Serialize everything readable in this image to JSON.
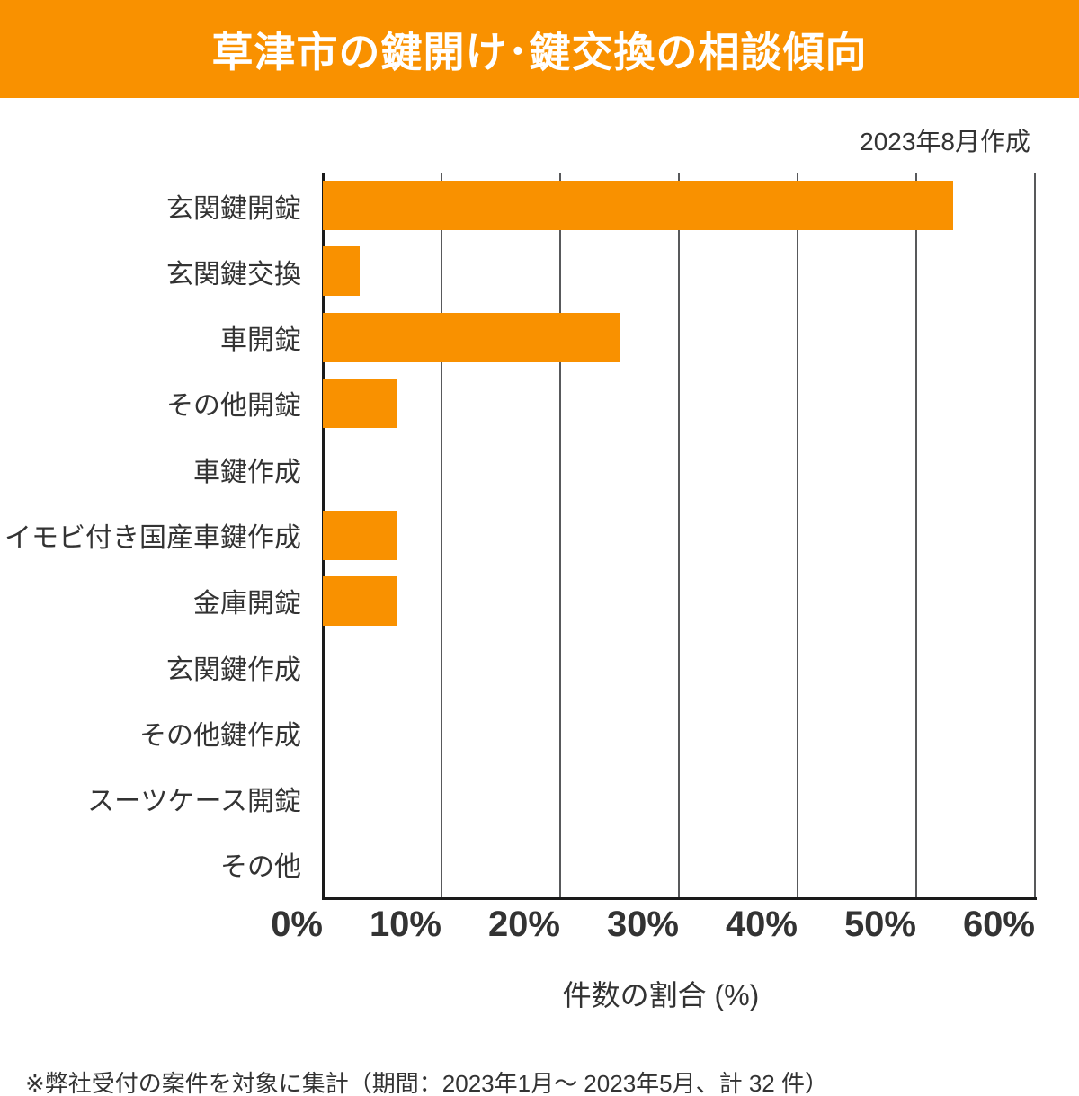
{
  "header": {
    "title": "草津市の鍵開け･鍵交換の相談傾向",
    "bg_color": "#F99100",
    "text_color": "#FFFFFF"
  },
  "meta": {
    "created_label": "2023年8月作成"
  },
  "chart_data": {
    "type": "bar",
    "orientation": "horizontal",
    "title": "草津市の鍵開け･鍵交換の相談傾向",
    "categories": [
      "玄関鍵開錠",
      "玄関鍵交換",
      "車開錠",
      "その他開錠",
      "車鍵作成",
      "イモビ付き国産車鍵作成",
      "金庫開錠",
      "玄関鍵作成",
      "その他鍵作成",
      "スーツケース開錠",
      "その他"
    ],
    "values": [
      53.1,
      3.1,
      25.0,
      6.3,
      0.0,
      6.3,
      6.3,
      0.0,
      0.0,
      0.0,
      0.0
    ],
    "unit": "%",
    "xlabel": "件数の割合 (%)",
    "xlim": [
      0,
      60
    ],
    "x_tick_labels": [
      "0%",
      "10%",
      "20%",
      "30%",
      "40%",
      "50%",
      "60%"
    ],
    "x_tick_values": [
      0,
      10,
      20,
      30,
      40,
      50,
      60
    ],
    "grid": "vertical",
    "legend": "none",
    "bar_color": "#F99100",
    "grid_color": "#58595B",
    "axis_color": "#1A1A1A",
    "text_color": "#333333"
  },
  "footer": {
    "note": "※弊社受付の案件を対象に集計（期間：2023年1月～ 2023年5月、計 32 件）"
  }
}
